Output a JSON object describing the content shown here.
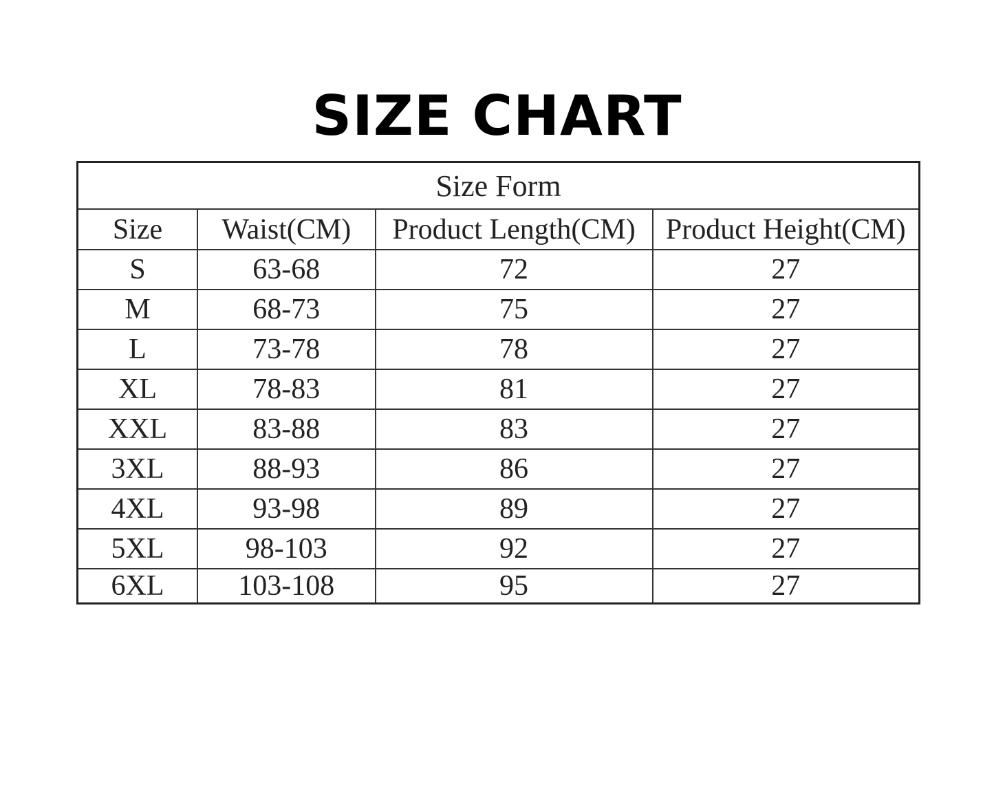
{
  "title": "SIZE CHART",
  "table": {
    "caption": "Size Form",
    "headers": [
      "Size",
      "Waist(CM)",
      "Product Length(CM)",
      "Product Height(CM)"
    ],
    "rows": [
      [
        "S",
        "63-68",
        "72",
        "27"
      ],
      [
        "M",
        "68-73",
        "75",
        "27"
      ],
      [
        "L",
        "73-78",
        "78",
        "27"
      ],
      [
        "XL",
        "78-83",
        "81",
        "27"
      ],
      [
        "XXL",
        "83-88",
        "83",
        "27"
      ],
      [
        "3XL",
        "88-93",
        "86",
        "27"
      ],
      [
        "4XL",
        "93-98",
        "89",
        "27"
      ],
      [
        "5XL",
        "98-103",
        "92",
        "27"
      ],
      [
        "6XL",
        "103-108",
        "95",
        "27"
      ]
    ]
  }
}
